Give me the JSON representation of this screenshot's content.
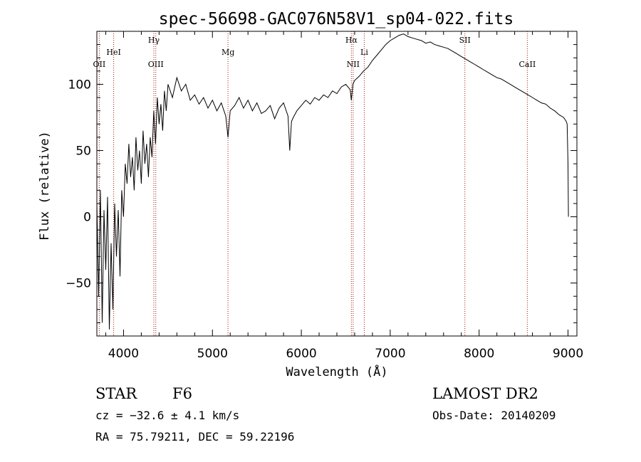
{
  "chart_data": {
    "type": "line",
    "title": "spec-56698-GAC076N58V1_sp04-022.fits",
    "xlabel": "Wavelength (Å)",
    "ylabel": "Flux (relative)",
    "xlim": [
      3700,
      9100
    ],
    "ylim": [
      -90,
      140
    ],
    "xticks": [
      4000,
      5000,
      6000,
      7000,
      8000,
      9000
    ],
    "yticks": [
      -50,
      0,
      50,
      100
    ],
    "line_color": "#000000",
    "marker_color": "#a01010",
    "grid": false,
    "spectrum": {
      "x": [
        3700,
        3720,
        3740,
        3760,
        3780,
        3800,
        3820,
        3840,
        3860,
        3880,
        3900,
        3920,
        3940,
        3960,
        3980,
        4000,
        4020,
        4040,
        4060,
        4080,
        4100,
        4120,
        4140,
        4160,
        4180,
        4200,
        4220,
        4240,
        4260,
        4280,
        4300,
        4320,
        4340,
        4360,
        4380,
        4400,
        4420,
        4440,
        4460,
        4480,
        4500,
        4550,
        4600,
        4650,
        4700,
        4750,
        4800,
        4850,
        4900,
        4950,
        5000,
        5050,
        5100,
        5150,
        5175,
        5200,
        5250,
        5300,
        5350,
        5400,
        5450,
        5500,
        5550,
        5600,
        5650,
        5700,
        5750,
        5800,
        5850,
        5870,
        5890,
        5910,
        5950,
        6000,
        6050,
        6100,
        6150,
        6200,
        6250,
        6300,
        6350,
        6400,
        6450,
        6500,
        6550,
        6563,
        6580,
        6600,
        6650,
        6700,
        6750,
        6800,
        6850,
        6900,
        6950,
        7000,
        7050,
        7100,
        7150,
        7200,
        7250,
        7300,
        7350,
        7400,
        7450,
        7500,
        7550,
        7600,
        7650,
        7700,
        7750,
        7800,
        7850,
        7900,
        7950,
        8000,
        8050,
        8100,
        8150,
        8200,
        8250,
        8300,
        8350,
        8400,
        8450,
        8500,
        8550,
        8600,
        8650,
        8700,
        8750,
        8800,
        8850,
        8900,
        8950,
        8980,
        8990,
        9000,
        9005
      ],
      "y": [
        10,
        -60,
        20,
        -80,
        5,
        -40,
        15,
        -85,
        -20,
        -70,
        10,
        -30,
        5,
        -45,
        20,
        0,
        40,
        25,
        55,
        30,
        45,
        20,
        60,
        35,
        50,
        25,
        65,
        40,
        55,
        30,
        60,
        45,
        80,
        55,
        90,
        70,
        85,
        65,
        95,
        80,
        100,
        90,
        105,
        95,
        100,
        88,
        92,
        85,
        90,
        82,
        88,
        80,
        86,
        76,
        60,
        80,
        84,
        90,
        82,
        88,
        80,
        86,
        78,
        80,
        84,
        74,
        82,
        86,
        76,
        50,
        72,
        75,
        80,
        84,
        88,
        85,
        90,
        88,
        92,
        90,
        95,
        93,
        98,
        100,
        96,
        88,
        100,
        103,
        106,
        110,
        113,
        118,
        122,
        126,
        130,
        133,
        135,
        137,
        138,
        136,
        135,
        134,
        133,
        131,
        132,
        130,
        129,
        128,
        127,
        125,
        123,
        121,
        119,
        117,
        115,
        113,
        111,
        109,
        107,
        105,
        104,
        102,
        100,
        98,
        96,
        94,
        92,
        90,
        88,
        86,
        85,
        82,
        80,
        77,
        75,
        72,
        70,
        40,
        0
      ]
    },
    "line_markers": [
      {
        "label": "OII",
        "x": 3727
      },
      {
        "label": "HeI",
        "x": 3889
      },
      {
        "label": "OIII",
        "x": 4363
      },
      {
        "label": "Hγ",
        "x": 4341
      },
      {
        "label": "Mg",
        "x": 5175
      },
      {
        "label": "NII",
        "x": 6583
      },
      {
        "label": "Hα",
        "x": 6563
      },
      {
        "label": "Li",
        "x": 6708
      },
      {
        "label": "SII",
        "x": 7840
      },
      {
        "label": "CaII",
        "x": 8542
      }
    ]
  },
  "info": {
    "class_label": "STAR",
    "subclass": "F6",
    "survey": "LAMOST DR2",
    "cz": "cz = −32.6 ± 4.1 km/s",
    "obs_date": "Obs-Date: 20140209",
    "coords": "RA =  75.79211, DEC =  59.22196"
  }
}
